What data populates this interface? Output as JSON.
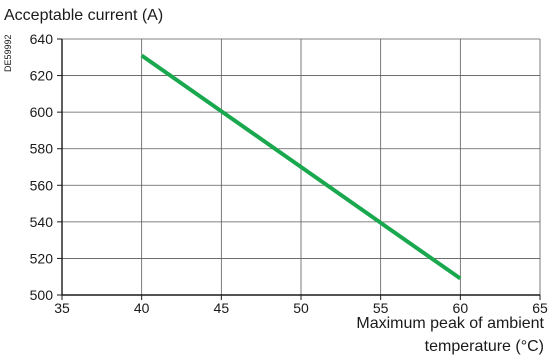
{
  "figure_code": "DE59992",
  "chart_data": {
    "type": "line",
    "ylabel": "Acceptable current (A)",
    "xlabel_lines": [
      "Maximum peak of ambient",
      "temperature (°C)"
    ],
    "xlim": [
      35,
      65
    ],
    "ylim": [
      500,
      640
    ],
    "x_ticks": [
      35,
      40,
      45,
      50,
      55,
      60,
      65
    ],
    "y_ticks": [
      500,
      520,
      540,
      560,
      580,
      600,
      620,
      640
    ],
    "grid": true,
    "series": [
      {
        "x": [
          40,
          60
        ],
        "y": [
          631,
          509
        ],
        "color": "#1aa84f"
      }
    ]
  }
}
